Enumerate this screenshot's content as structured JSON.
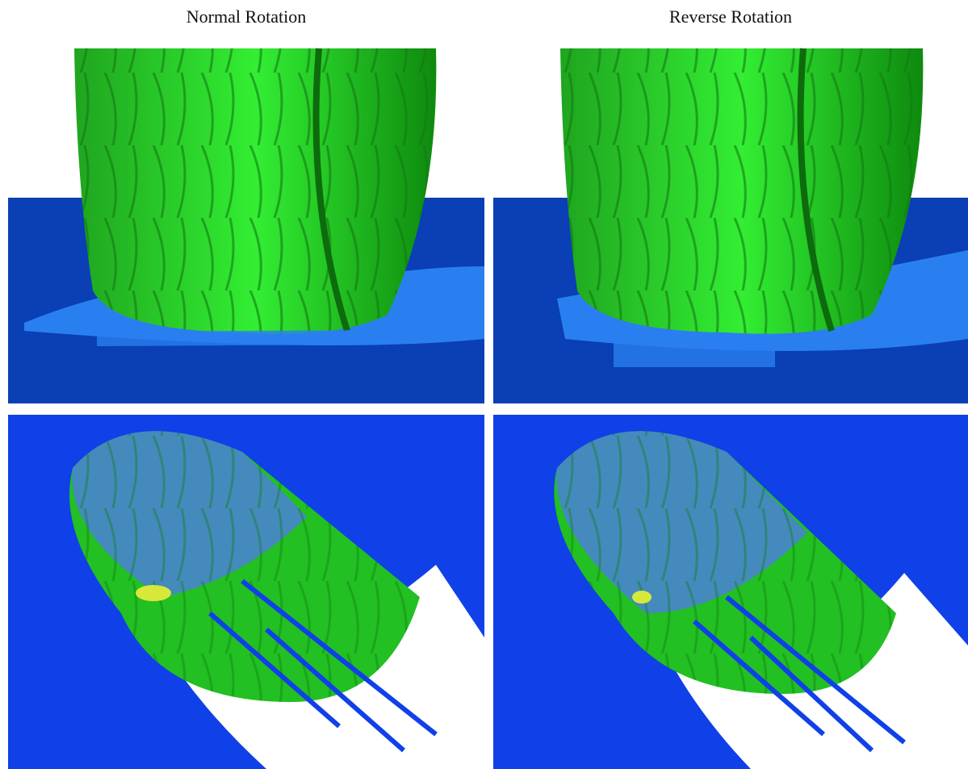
{
  "columns": [
    {
      "title": "Normal Rotation"
    },
    {
      "title": "Reverse Rotation"
    }
  ]
}
